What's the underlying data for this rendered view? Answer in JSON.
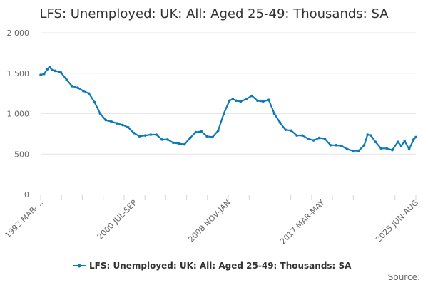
{
  "chart_data": {
    "type": "line",
    "title": "LFS: Unemployed: UK: All: Aged 25-49: Thousands: SA",
    "xlabel": "",
    "ylabel": "",
    "ylim": [
      0,
      2000
    ],
    "yticks": [
      0,
      500,
      1000,
      1500,
      2000
    ],
    "ytick_labels": [
      "0",
      "500",
      "1 000",
      "1 500",
      "2 000"
    ],
    "xtick_labels": [
      "1992 MAR-...",
      "2000 JUL-SEP",
      "2008 NOV-JAN",
      "2017 MAR-MAY",
      "2025 JUN-AUG"
    ],
    "grid": true,
    "legend_position": "bottom",
    "color": "#0d7ab8",
    "credit": "Source:",
    "series": [
      {
        "name": "LFS: Unemployed: UK: All: Aged 25-49: Thousands: SA",
        "x": [
          1992.2,
          1992.5,
          1992.8,
          1993.0,
          1993.2,
          1993.5,
          1994.0,
          1994.5,
          1995.0,
          1995.5,
          1996.0,
          1996.5,
          1997.0,
          1997.5,
          1998.0,
          1998.5,
          1999.0,
          1999.5,
          2000.0,
          2000.5,
          2001.0,
          2001.5,
          2002.0,
          2002.5,
          2003.0,
          2003.5,
          2004.0,
          2004.5,
          2005.0,
          2005.5,
          2006.0,
          2006.5,
          2007.0,
          2007.5,
          2008.0,
          2008.5,
          2009.0,
          2009.3,
          2009.6,
          2010.0,
          2010.5,
          2011.0,
          2011.5,
          2012.0,
          2012.5,
          2013.0,
          2013.5,
          2014.0,
          2014.5,
          2015.0,
          2015.5,
          2016.0,
          2016.5,
          2017.0,
          2017.5,
          2018.0,
          2018.5,
          2019.0,
          2019.5,
          2020.0,
          2020.5,
          2021.0,
          2021.3,
          2021.6,
          2022.0,
          2022.5,
          2023.0,
          2023.5,
          2024.0,
          2024.3,
          2024.6,
          2025.0,
          2025.4,
          2025.6
        ],
        "values": [
          1480,
          1490,
          1550,
          1580,
          1540,
          1530,
          1510,
          1420,
          1340,
          1320,
          1280,
          1250,
          1140,
          1000,
          920,
          900,
          880,
          860,
          830,
          760,
          720,
          730,
          740,
          740,
          680,
          680,
          640,
          630,
          620,
          700,
          770,
          780,
          720,
          710,
          790,
          1000,
          1160,
          1180,
          1160,
          1150,
          1180,
          1220,
          1160,
          1150,
          1170,
          1000,
          890,
          800,
          790,
          730,
          730,
          690,
          670,
          700,
          690,
          610,
          610,
          600,
          560,
          540,
          540,
          610,
          740,
          730,
          650,
          570,
          570,
          550,
          650,
          600,
          660,
          560,
          680,
          710
        ]
      }
    ]
  }
}
